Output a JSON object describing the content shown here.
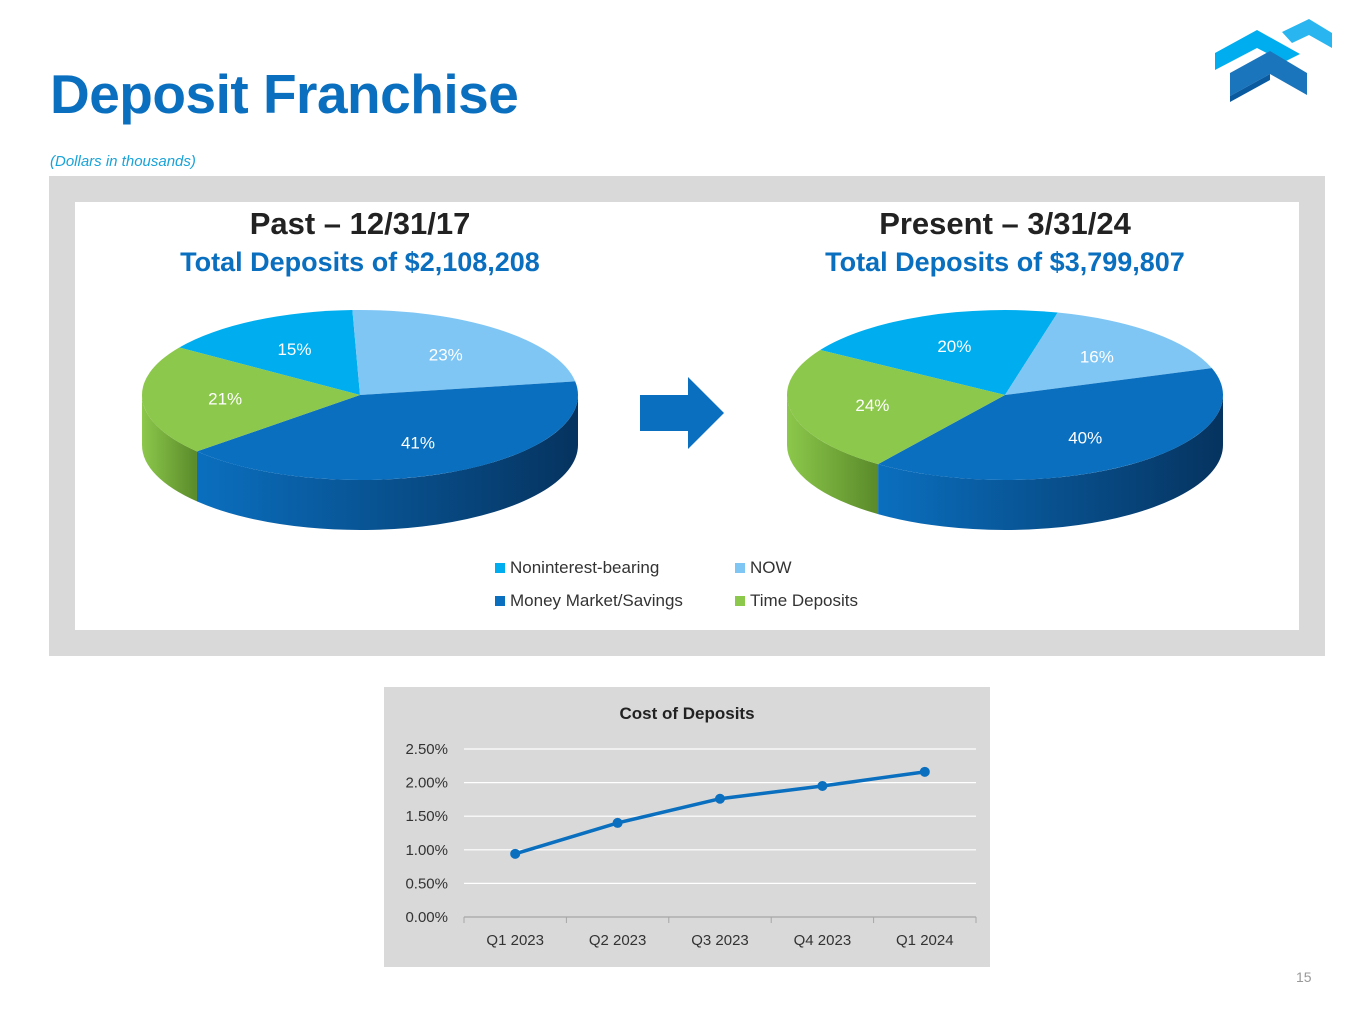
{
  "header": {
    "title": "Deposit Franchise",
    "subtitle": "(Dollars in thousands)"
  },
  "colors": {
    "brand_blue": "#0a6fbf",
    "noninterest_bearing": "#00aeef",
    "now": "#7fc6f5",
    "money_market_savings": "#0a6fbf",
    "time_deposits": "#8cc84b"
  },
  "pies": {
    "past": {
      "heading": "Past – 12/31/17",
      "total_label": "Total Deposits of $2,108,208"
    },
    "present": {
      "heading": "Present – 3/31/24",
      "total_label": "Total Deposits of $3,799,807"
    }
  },
  "legend": {
    "noninterest_bearing": "Noninterest-bearing",
    "now": "NOW",
    "money_market_savings": "Money Market/Savings",
    "time_deposits": "Time Deposits"
  },
  "chart_data": [
    {
      "type": "pie",
      "categories": [
        "Noninterest-bearing",
        "NOW",
        "Money Market/Savings",
        "Time Deposits"
      ],
      "values": [
        15,
        23,
        41,
        21
      ],
      "labels": [
        "15%",
        "23%",
        "41%",
        "21%"
      ],
      "title": "Past – 12/31/17",
      "subtitle": "Total Deposits of $2,108,208"
    },
    {
      "type": "pie",
      "categories": [
        "Noninterest-bearing",
        "NOW",
        "Money Market/Savings",
        "Time Deposits"
      ],
      "values": [
        20,
        16,
        40,
        24
      ],
      "labels": [
        "20%",
        "16%",
        "40%",
        "24%"
      ],
      "title": "Present – 3/31/24",
      "subtitle": "Total Deposits of $3,799,807"
    },
    {
      "type": "line",
      "title": "Cost of Deposits",
      "categories": [
        "Q1 2023",
        "Q2 2023",
        "Q3 2023",
        "Q4 2023",
        "Q1 2024"
      ],
      "values": [
        0.94,
        1.4,
        1.76,
        1.95,
        2.16
      ],
      "ylim": [
        0,
        2.5
      ],
      "yticks": [
        "0.00%",
        "0.50%",
        "1.00%",
        "1.50%",
        "2.00%",
        "2.50%"
      ],
      "grid": true,
      "color": "#0a6fbf"
    }
  ],
  "footer": {
    "page_number": "15"
  }
}
